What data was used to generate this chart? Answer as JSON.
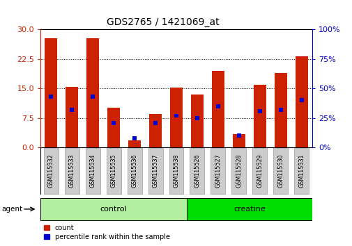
{
  "title": "GDS2765 / 1421069_at",
  "categories": [
    "GSM115532",
    "GSM115533",
    "GSM115534",
    "GSM115535",
    "GSM115536",
    "GSM115537",
    "GSM115538",
    "GSM115526",
    "GSM115527",
    "GSM115528",
    "GSM115529",
    "GSM115530",
    "GSM115531"
  ],
  "counts": [
    27.8,
    15.5,
    27.8,
    10.2,
    1.8,
    8.5,
    15.3,
    13.5,
    19.5,
    3.5,
    16.0,
    19.0,
    23.2
  ],
  "percentiles": [
    43,
    32,
    43,
    21,
    8,
    21,
    27,
    25,
    35,
    10,
    31,
    32,
    40
  ],
  "groups": [
    {
      "label": "control",
      "start": 0,
      "end": 7,
      "color": "#b2f0a0"
    },
    {
      "label": "creatine",
      "start": 7,
      "end": 13,
      "color": "#00dd00"
    }
  ],
  "ylim_left": [
    0,
    30
  ],
  "ylim_right": [
    0,
    100
  ],
  "yticks_left": [
    0,
    7.5,
    15,
    22.5,
    30
  ],
  "yticks_right": [
    0,
    25,
    50,
    75,
    100
  ],
  "bar_color": "#cc2200",
  "percentile_color": "#0000cc",
  "agent_label": "agent",
  "legend_count": "count",
  "legend_percentile": "percentile rank within the sample",
  "title_fontsize": 10,
  "left_tick_color": "#cc2200",
  "right_tick_color": "#0000cc",
  "bar_width": 0.6,
  "tick_box_color": "#cccccc"
}
